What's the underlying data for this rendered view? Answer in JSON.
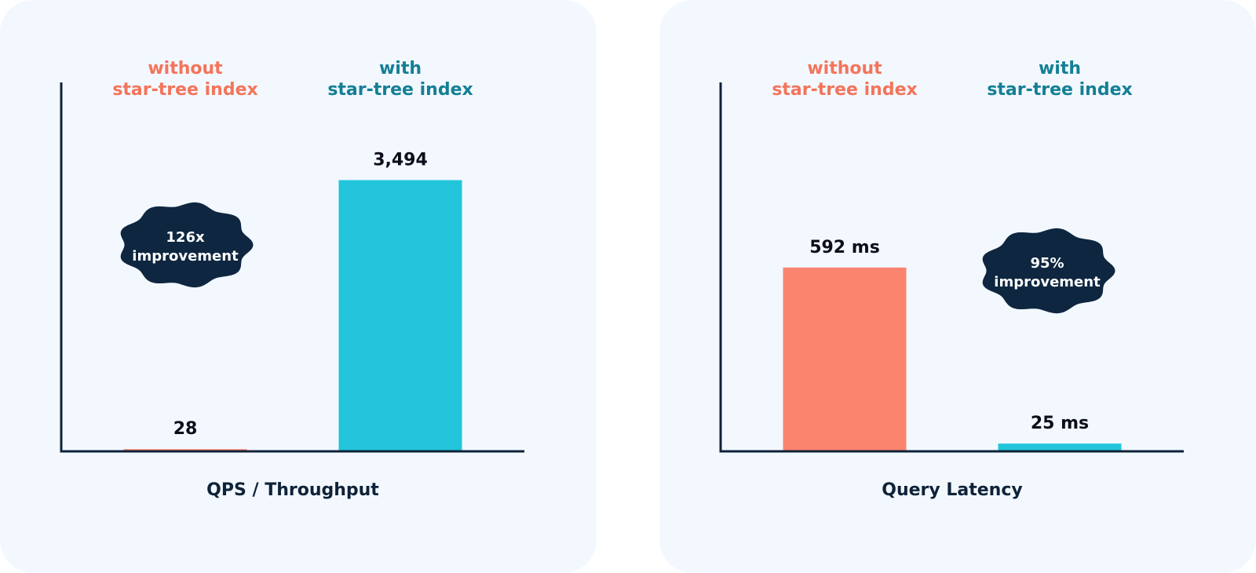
{
  "colors": {
    "background": "#ffffff",
    "panel": "#f2f8fe",
    "axis": "#0e2238",
    "bar_without": "#fb846e",
    "bar_with": "#22c5dc",
    "label_without": "#f4745b",
    "label_with": "#147f95",
    "badge": "#0e2640",
    "value_text": "#0d0d1a"
  },
  "chart_data": [
    {
      "type": "bar",
      "title": "",
      "xlabel": "QPS / Throughput",
      "ylabel": "",
      "categories": [
        [
          "without",
          "star-tree index"
        ],
        [
          "with",
          "star-tree index"
        ]
      ],
      "values": [
        28,
        3494
      ],
      "value_labels": [
        "28",
        "3,494"
      ],
      "ylim": [
        0,
        4500
      ],
      "grid": false,
      "badge": {
        "lines": [
          "126x",
          "improvement"
        ],
        "position": "left"
      }
    },
    {
      "type": "bar",
      "title": "",
      "xlabel": "Query Latency",
      "ylabel": "",
      "categories": [
        [
          "without",
          "star-tree index"
        ],
        [
          "with",
          "star-tree index"
        ]
      ],
      "values": [
        592,
        25
      ],
      "value_labels": [
        "592 ms",
        "25 ms"
      ],
      "ylim": [
        0,
        1125
      ],
      "grid": false,
      "badge": {
        "lines": [
          "95%",
          "improvement"
        ],
        "position": "right"
      }
    }
  ]
}
